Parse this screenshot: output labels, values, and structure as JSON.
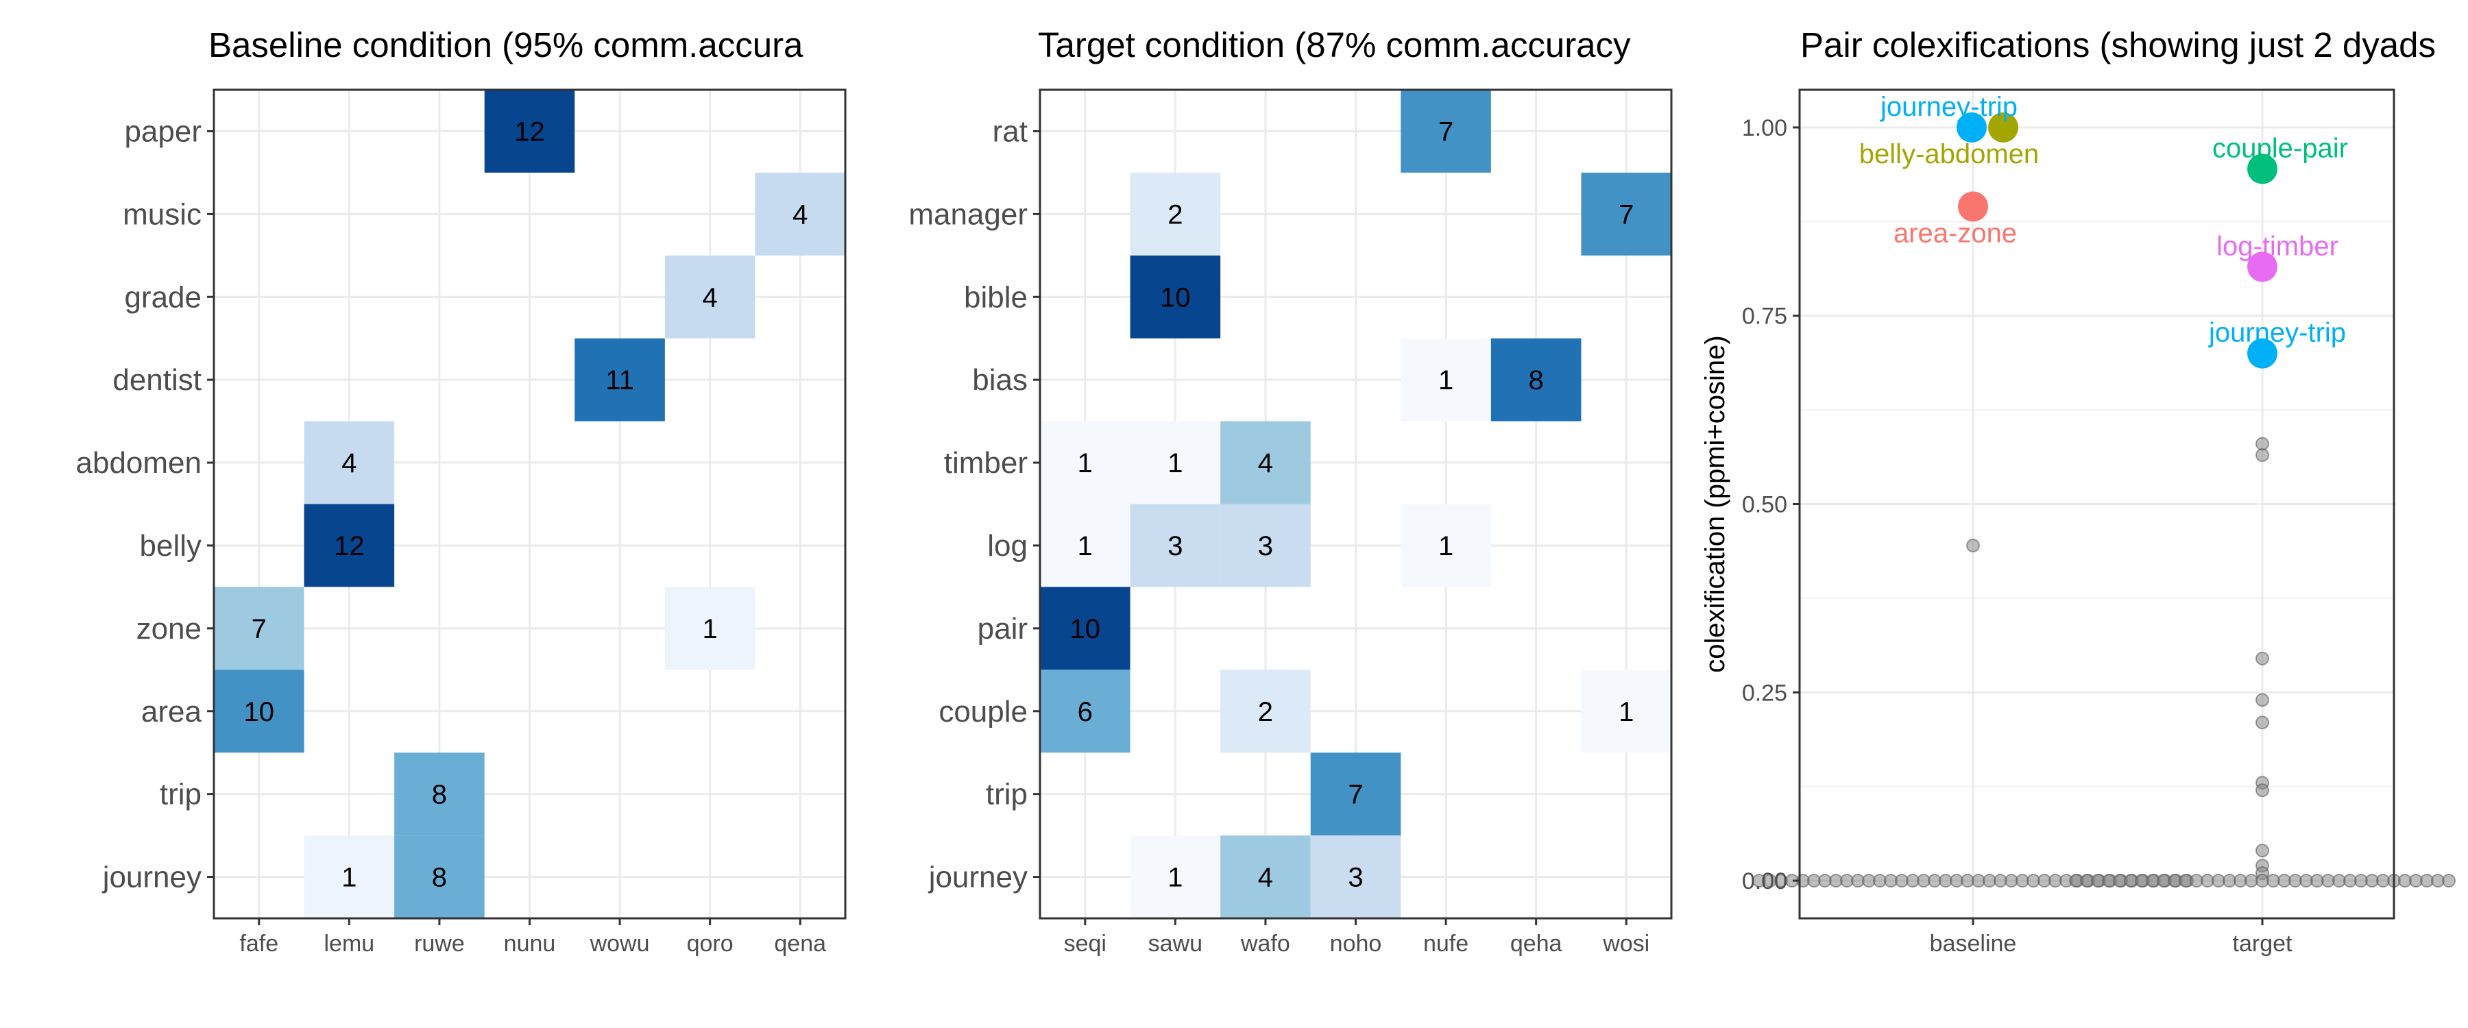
{
  "chart_data": [
    {
      "type": "heatmap",
      "title": "Baseline condition (95% comm.accura",
      "xlabel": "",
      "ylabel": "",
      "x_categories": [
        "fafe",
        "lemu",
        "ruwe",
        "nunu",
        "wowu",
        "qoro",
        "qena"
      ],
      "y_categories": [
        "paper",
        "music",
        "grade",
        "dentist",
        "abdomen",
        "belly",
        "zone",
        "area",
        "trip",
        "journey"
      ],
      "color_scale": "Blues",
      "cells": [
        {
          "x": "nunu",
          "y": "paper",
          "value": 12
        },
        {
          "x": "qena",
          "y": "music",
          "value": 4
        },
        {
          "x": "qoro",
          "y": "grade",
          "value": 4
        },
        {
          "x": "wowu",
          "y": "dentist",
          "value": 11
        },
        {
          "x": "lemu",
          "y": "abdomen",
          "value": 4
        },
        {
          "x": "lemu",
          "y": "belly",
          "value": 12
        },
        {
          "x": "fafe",
          "y": "zone",
          "value": 7
        },
        {
          "x": "qoro",
          "y": "zone",
          "value": 1
        },
        {
          "x": "fafe",
          "y": "area",
          "value": 10
        },
        {
          "x": "ruwe",
          "y": "trip",
          "value": 8
        },
        {
          "x": "lemu",
          "y": "journey",
          "value": 1
        },
        {
          "x": "ruwe",
          "y": "journey",
          "value": 8
        }
      ]
    },
    {
      "type": "heatmap",
      "title": "Target condition (87% comm.accuracy",
      "xlabel": "",
      "ylabel": "",
      "x_categories": [
        "seqi",
        "sawu",
        "wafo",
        "noho",
        "nufe",
        "qeha",
        "wosi"
      ],
      "y_categories": [
        "rat",
        "manager",
        "bible",
        "bias",
        "timber",
        "log",
        "pair",
        "couple",
        "trip",
        "journey"
      ],
      "color_scale": "Blues",
      "cells": [
        {
          "x": "nufe",
          "y": "rat",
          "value": 7
        },
        {
          "x": "sawu",
          "y": "manager",
          "value": 2
        },
        {
          "x": "wosi",
          "y": "manager",
          "value": 7
        },
        {
          "x": "sawu",
          "y": "bible",
          "value": 10
        },
        {
          "x": "nufe",
          "y": "bias",
          "value": 1
        },
        {
          "x": "qeha",
          "y": "bias",
          "value": 8
        },
        {
          "x": "seqi",
          "y": "timber",
          "value": 1
        },
        {
          "x": "sawu",
          "y": "timber",
          "value": 1
        },
        {
          "x": "wafo",
          "y": "timber",
          "value": 4
        },
        {
          "x": "seqi",
          "y": "log",
          "value": 1
        },
        {
          "x": "sawu",
          "y": "log",
          "value": 3
        },
        {
          "x": "wafo",
          "y": "log",
          "value": 3
        },
        {
          "x": "nufe",
          "y": "log",
          "value": 1
        },
        {
          "x": "seqi",
          "y": "pair",
          "value": 10
        },
        {
          "x": "seqi",
          "y": "couple",
          "value": 6
        },
        {
          "x": "wafo",
          "y": "couple",
          "value": 2
        },
        {
          "x": "wosi",
          "y": "couple",
          "value": 1
        },
        {
          "x": "noho",
          "y": "trip",
          "value": 7
        },
        {
          "x": "sawu",
          "y": "journey",
          "value": 1
        },
        {
          "x": "wafo",
          "y": "journey",
          "value": 4
        },
        {
          "x": "noho",
          "y": "journey",
          "value": 3
        }
      ]
    },
    {
      "type": "scatter",
      "title": "Pair colexifications (showing just 2 dyads",
      "xlabel": "",
      "ylabel": "colexification (ppmi+cosine)",
      "categories": [
        "baseline",
        "target"
      ],
      "ylim": [
        -0.05,
        1.05
      ],
      "y_ticks": [
        "0.00",
        "0.25",
        "0.50",
        "0.75",
        "1.00"
      ],
      "grid": true,
      "background_points": {
        "color": "#888888",
        "baseline": [
          0.445,
          0,
          0,
          0,
          0,
          0,
          0,
          0,
          0,
          0,
          0,
          0,
          0,
          0,
          0,
          0,
          0,
          0,
          0,
          0,
          0,
          0,
          0,
          0,
          0,
          0,
          0,
          0,
          0,
          0,
          0,
          0,
          0,
          0,
          0,
          0,
          0,
          0,
          0,
          0,
          0
        ],
        "target": [
          0.58,
          0.565,
          0.295,
          0.24,
          0.21,
          0.13,
          0.12,
          0.04,
          0.02,
          0.01,
          0,
          0,
          0,
          0,
          0,
          0,
          0,
          0,
          0,
          0,
          0,
          0,
          0,
          0,
          0,
          0,
          0,
          0,
          0,
          0,
          0,
          0,
          0,
          0,
          0,
          0,
          0,
          0,
          0,
          0,
          0,
          0,
          0,
          0,
          0
        ]
      },
      "highlighted": [
        {
          "label": "journey-trip",
          "group": "baseline",
          "y": 1.0,
          "color": "#00b0f6"
        },
        {
          "label": "belly-abdomen",
          "group": "baseline",
          "y": 1.0,
          "color": "#a3a500"
        },
        {
          "label": "area-zone",
          "group": "baseline",
          "y": 0.895,
          "color": "#f8766d"
        },
        {
          "label": "couple-pair",
          "group": "target",
          "y": 0.945,
          "color": "#00bf7d"
        },
        {
          "label": "log-timber",
          "group": "target",
          "y": 0.815,
          "color": "#e76bf3"
        },
        {
          "label": "journey-trip",
          "group": "target",
          "y": 0.7,
          "color": "#00b0f6"
        }
      ]
    }
  ]
}
